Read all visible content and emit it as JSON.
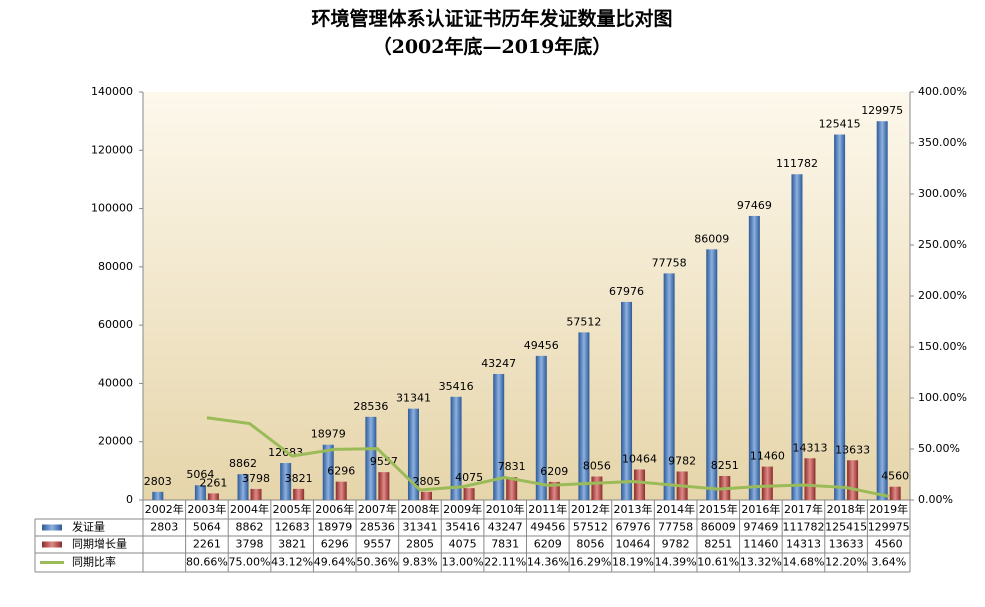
{
  "chart_data": {
    "type": "bar",
    "title": "环境管理体系认证证书历年发证数量比对图",
    "subtitle": "（2002年底—2019年底）",
    "categories": [
      "2002年",
      "2003年",
      "2004年",
      "2005年",
      "2006年",
      "2007年",
      "2008年",
      "2009年",
      "2010年",
      "2011年",
      "2012年",
      "2013年",
      "2014年",
      "2015年",
      "2016年",
      "2017年",
      "2018年",
      "2019年"
    ],
    "series": [
      {
        "name": "发证量",
        "color": "#4f81bd",
        "type": "bar",
        "values": [
          2803,
          5064,
          8862,
          12683,
          18979,
          28536,
          31341,
          35416,
          43247,
          49456,
          57512,
          67976,
          77758,
          86009,
          97469,
          111782,
          125415,
          129975
        ]
      },
      {
        "name": "同期增长量",
        "color": "#c0504d",
        "type": "bar",
        "values": [
          null,
          2261,
          3798,
          3821,
          6296,
          9557,
          2805,
          4075,
          7831,
          6209,
          8056,
          10464,
          9782,
          8251,
          11460,
          14313,
          13633,
          4560
        ]
      },
      {
        "name": "同期比率",
        "color": "#9bbb59",
        "type": "line",
        "axis": "y2",
        "values": [
          null,
          80.66,
          75.0,
          43.12,
          49.64,
          50.36,
          9.83,
          13.0,
          22.11,
          14.36,
          16.29,
          18.19,
          14.39,
          10.61,
          13.32,
          14.68,
          12.2,
          3.64
        ],
        "value_labels": [
          null,
          "80.66%",
          "75.00%",
          "43.12%",
          "49.64%",
          "50.36%",
          "9.83%",
          "13.00%",
          "22.11%",
          "14.36%",
          "16.29%",
          "18.19%",
          "14.39%",
          "10.61%",
          "13.32%",
          "14.68%",
          "12.20%",
          "3.64%"
        ]
      }
    ],
    "ylim": [
      0,
      140000
    ],
    "yticks": [
      0,
      20000,
      40000,
      60000,
      80000,
      100000,
      120000,
      140000
    ],
    "y2lim": [
      0,
      400
    ],
    "y2ticks": [
      {
        "value": 0,
        "label": "0.00%"
      },
      {
        "value": 50,
        "label": "50.00%"
      },
      {
        "value": 100,
        "label": "100.00%"
      },
      {
        "value": 150,
        "label": "150.00%"
      },
      {
        "value": 200,
        "label": "200.00%"
      },
      {
        "value": 250,
        "label": "250.00%"
      },
      {
        "value": 300,
        "label": "300.00%"
      },
      {
        "value": 350,
        "label": "350.00%"
      },
      {
        "value": 400,
        "label": "400.00%"
      }
    ]
  }
}
